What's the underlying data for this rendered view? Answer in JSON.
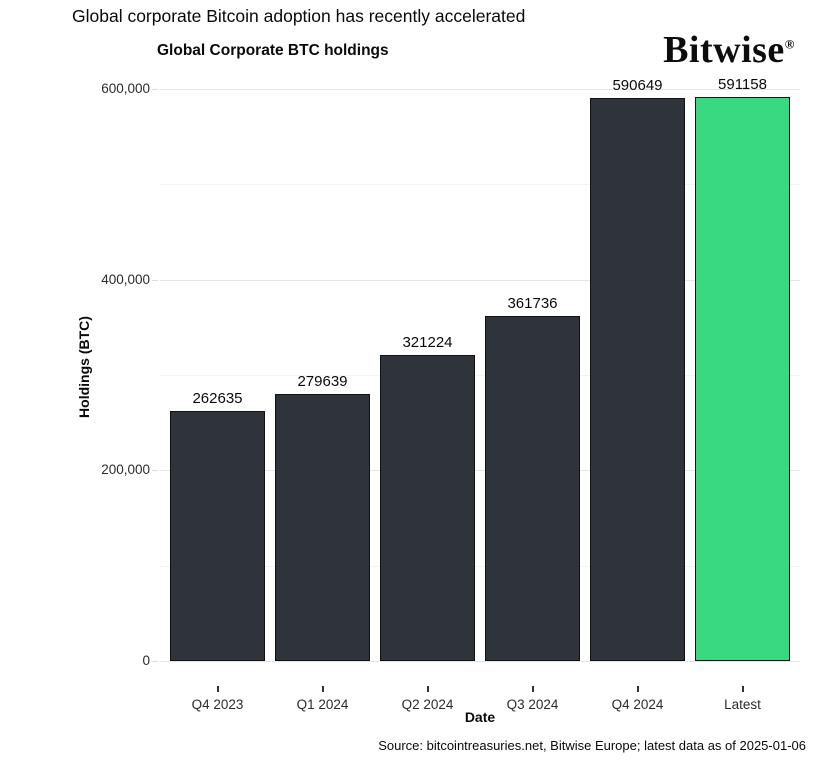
{
  "page": {
    "headline": "Global corporate Bitcoin adoption has recently accelerated",
    "logo_text": "Bitwise",
    "logo_registered_mark": "®",
    "source_note": "Source: bitcointreasuries.net, Bitwise Europe; latest data as of 2025-01-06"
  },
  "chart_data": {
    "type": "bar",
    "title": "Global Corporate BTC holdings",
    "xlabel": "Date",
    "ylabel": "Holdings (BTC)",
    "categories": [
      "Q4 2023",
      "Q1 2024",
      "Q2 2024",
      "Q3 2024",
      "Q4 2024",
      "Latest"
    ],
    "values": [
      262635,
      279639,
      321224,
      361736,
      590649,
      591158
    ],
    "bar_labels": [
      "262635",
      "279639",
      "321224",
      "361736",
      "590649",
      "591158"
    ],
    "ylim": [
      0,
      617000
    ],
    "yticks": [
      0,
      200000,
      400000,
      600000
    ],
    "ytick_labels": [
      "0",
      "200,000",
      "400,000",
      "600,000"
    ],
    "minor_gridlines": [
      100000,
      300000,
      500000
    ],
    "grid": "horizontal-only",
    "legend": "none",
    "colors": {
      "bar_default": "#2e343a",
      "bar_highlight": "#39d982",
      "bar_border": "#121212",
      "grid_major": "#e5e5e5",
      "grid_minor": "#f3f3f3",
      "text": "#0a0a0a"
    },
    "highlight_index": 5
  }
}
